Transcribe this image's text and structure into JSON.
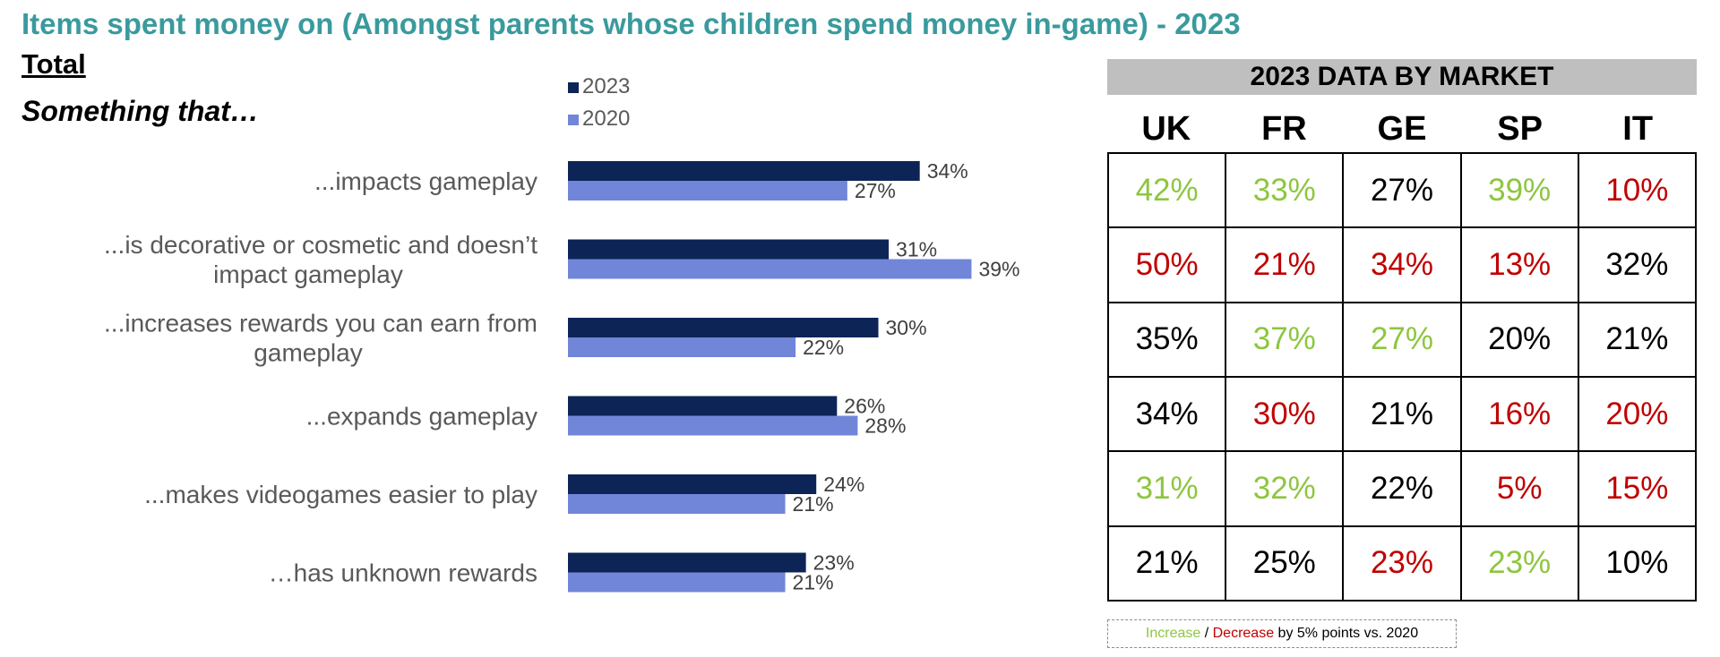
{
  "title": "Items spent money on (Amongst parents whose children spend money in-game) - 2023",
  "subtitle": "Total",
  "lead": "Something that…",
  "colors": {
    "series_2023": "#0d2456",
    "series_2020": "#7186d8",
    "increase": "#8dc63f",
    "decrease": "#c00000",
    "title": "#3a9a9d"
  },
  "chart_data": {
    "type": "bar",
    "orientation": "horizontal",
    "categories": [
      [
        "...impacts gameplay"
      ],
      [
        "...is decorative or cosmetic and doesn’t",
        "impact gameplay"
      ],
      [
        "...increases rewards you can earn from",
        "gameplay"
      ],
      [
        "...expands gameplay"
      ],
      [
        "...makes videogames easier to play"
      ],
      [
        "…has unknown rewards"
      ]
    ],
    "series": [
      {
        "name": "2023",
        "values": [
          34,
          31,
          30,
          26,
          24,
          23
        ],
        "labels": [
          "34%",
          "31%",
          "30%",
          "26%",
          "24%",
          "23%"
        ]
      },
      {
        "name": "2020",
        "values": [
          27,
          39,
          22,
          28,
          21,
          21
        ],
        "labels": [
          "27%",
          "39%",
          "22%",
          "28%",
          "21%",
          "21%"
        ]
      }
    ],
    "unit": "%",
    "xlim": [
      0,
      40
    ],
    "legend": "top"
  },
  "market": {
    "title": "2023 DATA BY MARKET",
    "columns": [
      "UK",
      "FR",
      "GE",
      "SP",
      "IT"
    ],
    "rows": [
      [
        {
          "v": "42%",
          "s": "up"
        },
        {
          "v": "33%",
          "s": "up"
        },
        {
          "v": "27%",
          "s": "flat"
        },
        {
          "v": "39%",
          "s": "up"
        },
        {
          "v": "10%",
          "s": "down"
        }
      ],
      [
        {
          "v": "50%",
          "s": "down"
        },
        {
          "v": "21%",
          "s": "down"
        },
        {
          "v": "34%",
          "s": "down"
        },
        {
          "v": "13%",
          "s": "down"
        },
        {
          "v": "32%",
          "s": "flat"
        }
      ],
      [
        {
          "v": "35%",
          "s": "flat"
        },
        {
          "v": "37%",
          "s": "up"
        },
        {
          "v": "27%",
          "s": "up"
        },
        {
          "v": "20%",
          "s": "flat"
        },
        {
          "v": "21%",
          "s": "flat"
        }
      ],
      [
        {
          "v": "34%",
          "s": "flat"
        },
        {
          "v": "30%",
          "s": "down"
        },
        {
          "v": "21%",
          "s": "flat"
        },
        {
          "v": "16%",
          "s": "down"
        },
        {
          "v": "20%",
          "s": "down"
        }
      ],
      [
        {
          "v": "31%",
          "s": "up"
        },
        {
          "v": "32%",
          "s": "up"
        },
        {
          "v": "22%",
          "s": "flat"
        },
        {
          "v": "5%",
          "s": "down"
        },
        {
          "v": "15%",
          "s": "down"
        }
      ],
      [
        {
          "v": "21%",
          "s": "flat"
        },
        {
          "v": "25%",
          "s": "flat"
        },
        {
          "v": "23%",
          "s": "down"
        },
        {
          "v": "23%",
          "s": "up"
        },
        {
          "v": "10%",
          "s": "flat"
        }
      ]
    ],
    "note": {
      "increase": "Increase",
      "slash": " / ",
      "decrease": "Decrease",
      "rest": " by 5% points vs. 2020"
    }
  }
}
